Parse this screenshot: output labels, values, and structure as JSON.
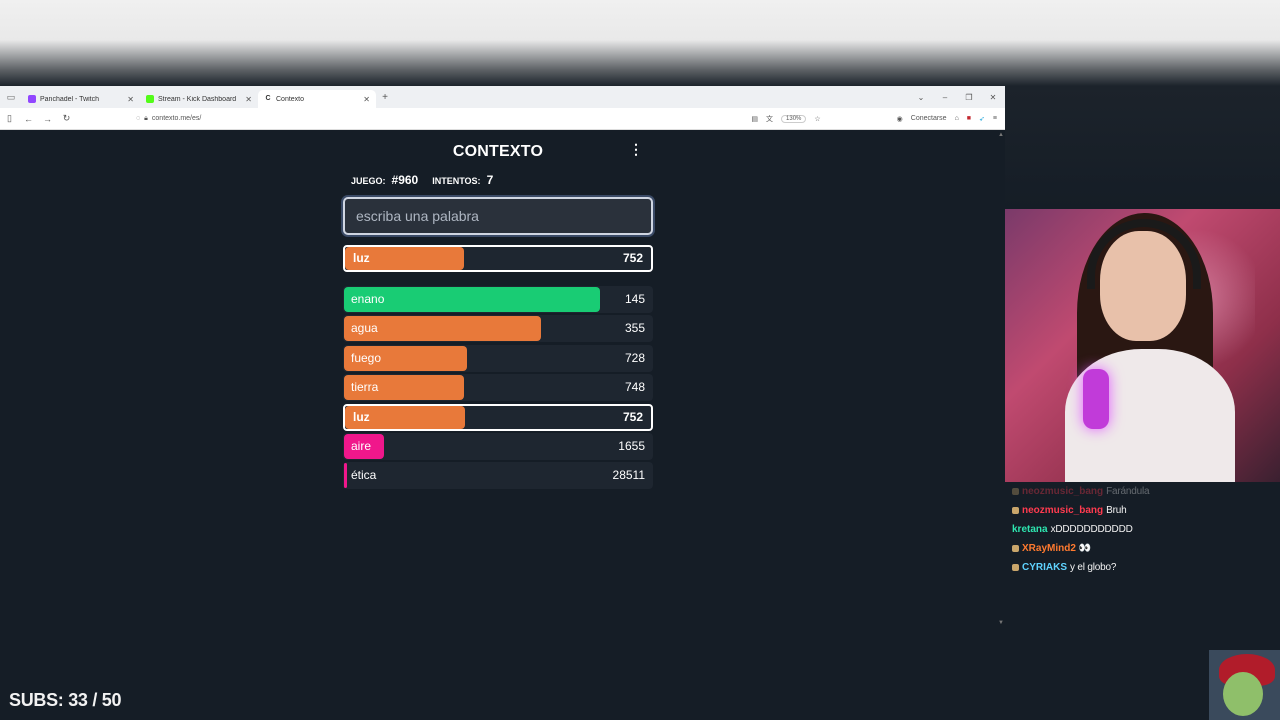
{
  "browser": {
    "tabs": [
      {
        "label": "Panchadel - Twitch",
        "favicon_color": "#9146ff",
        "active": false
      },
      {
        "label": "Stream - Kick Dashboard",
        "favicon_color": "#53fc18",
        "active": false
      },
      {
        "label": "Contexto",
        "favicon_color": "#333333",
        "active": true
      }
    ],
    "url": "contexto.me/es/",
    "zoom": "130%",
    "connect_label": "Conectarse"
  },
  "game": {
    "title": "CONTEXTO",
    "juego_label": "JUEGO:",
    "juego_value": "#960",
    "intentos_label": "INTENTOS:",
    "intentos_value": "7",
    "input_placeholder": "escriba una palabra",
    "last_guess": {
      "word": "luz",
      "rank": "752",
      "color": "#e8793a",
      "fill": 0.39
    },
    "guesses": [
      {
        "word": "enano",
        "rank": "145",
        "color": "#19cc74",
        "fill": 0.83,
        "selected": false
      },
      {
        "word": "agua",
        "rank": "355",
        "color": "#e8793a",
        "fill": 0.64,
        "selected": false
      },
      {
        "word": "fuego",
        "rank": "728",
        "color": "#e8793a",
        "fill": 0.4,
        "selected": false
      },
      {
        "word": "tierra",
        "rank": "748",
        "color": "#e8793a",
        "fill": 0.39,
        "selected": false
      },
      {
        "word": "luz",
        "rank": "752",
        "color": "#e8793a",
        "fill": 0.39,
        "selected": true
      },
      {
        "word": "aire",
        "rank": "1655",
        "color": "#f0178b",
        "fill": 0.13,
        "selected": false
      },
      {
        "word": "ética",
        "rank": "28511",
        "color": "#f0178b",
        "fill": 0.01,
        "selected": false
      }
    ]
  },
  "chat": {
    "messages": [
      {
        "user": "neozmusic_bang",
        "text": "Farándula",
        "user_color": "#ff3b4f",
        "faded": true
      },
      {
        "user": "neozmusic_bang",
        "text": "Bruh",
        "user_color": "#ff3b4f",
        "faded": false
      },
      {
        "user": "kretana",
        "text": "xDDDDDDDDDDD",
        "user_color": "#2ee6b0",
        "faded": false
      },
      {
        "user": "XRayMind2",
        "text": "👀",
        "user_color": "#ff7a2f",
        "faded": false
      },
      {
        "user": "CYRIAKS",
        "text": "y el globo?",
        "user_color": "#5fd3ff",
        "faded": false
      }
    ]
  },
  "overlay": {
    "subs_text": "SUBS: 33 / 50"
  }
}
